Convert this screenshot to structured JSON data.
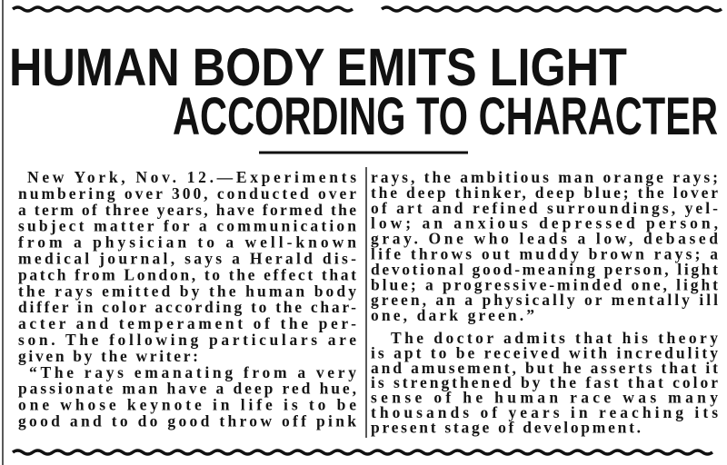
{
  "headline": {
    "line1": "HUMAN BODY EMITS LIGHT",
    "line2": "ACCORDING TO CHARACTER"
  },
  "column1": [
    "New York, Nov. 12.—Experiments",
    "numbering over 300, conducted over",
    "a term of three years, have formed the",
    "subject matter for a communication",
    "from a physician to a well-known",
    "medical journal, says a Herald dis-",
    "patch from London, to the effect that",
    "the rays emitted by the human body",
    "differ in color according to the char-",
    "acter and temperament of the per-",
    "son. The following particulars are",
    "given by the writer:",
    "“The rays emanating from a very",
    "passionate man have a deep red hue,",
    "one whose keynote in life is to be",
    "good and to do good throw off pink"
  ],
  "column2": [
    "rays, the ambitious man orange rays;",
    "the deep thinker, deep blue; the lover",
    "of art and refined surroundings, yel-",
    "low; an anxious depressed person,",
    "gray. One who leads a low, debased",
    "life throws out muddy brown rays; a",
    "devotional good-meaning person, light",
    "blue; a progressive-minded one, light",
    "green, an a physically or mentally ill",
    "one, dark green.”",
    "The doctor admits that his theory",
    "is apt to be received with incredulity",
    "and amusement, but he asserts that it",
    "is strengthened by the fast that color",
    "sense of he human race was many",
    "thousands of years in reaching its",
    "present stage of development."
  ]
}
